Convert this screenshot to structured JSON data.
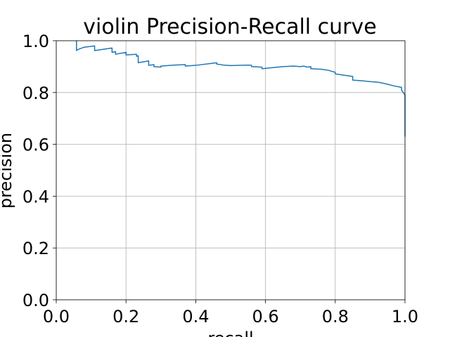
{
  "chart_data": {
    "type": "line",
    "title": "violin Precision-Recall curve",
    "xlabel": "recall",
    "ylabel": "precision",
    "xlim": [
      0.0,
      1.0
    ],
    "ylim": [
      0.0,
      1.0
    ],
    "xticks": [
      "0.0",
      "0.2",
      "0.4",
      "0.6",
      "0.8",
      "1.0"
    ],
    "yticks": [
      "0.0",
      "0.2",
      "0.4",
      "0.6",
      "0.8",
      "1.0"
    ],
    "grid": true,
    "series": [
      {
        "color": "#1f77b4",
        "x": [
          0.058,
          0.058,
          0.06,
          0.08,
          0.11,
          0.11,
          0.16,
          0.16,
          0.17,
          0.17,
          0.2,
          0.2,
          0.23,
          0.23,
          0.235,
          0.235,
          0.265,
          0.265,
          0.28,
          0.28,
          0.3,
          0.3,
          0.33,
          0.37,
          0.37,
          0.4,
          0.46,
          0.46,
          0.48,
          0.5,
          0.53,
          0.55,
          0.56,
          0.56,
          0.59,
          0.59,
          0.65,
          0.68,
          0.7,
          0.71,
          0.72,
          0.73,
          0.73,
          0.76,
          0.78,
          0.79,
          0.8,
          0.8,
          0.82,
          0.85,
          0.85,
          0.88,
          0.9,
          0.92,
          0.93,
          0.95,
          0.97,
          0.99,
          0.99,
          0.995,
          1.0,
          1.0
        ],
        "y": [
          1.0,
          0.962,
          0.965,
          0.975,
          0.98,
          0.962,
          0.972,
          0.955,
          0.958,
          0.948,
          0.955,
          0.945,
          0.948,
          0.94,
          0.942,
          0.915,
          0.922,
          0.905,
          0.908,
          0.9,
          0.898,
          0.902,
          0.905,
          0.908,
          0.902,
          0.905,
          0.915,
          0.91,
          0.906,
          0.904,
          0.905,
          0.906,
          0.905,
          0.9,
          0.898,
          0.892,
          0.9,
          0.902,
          0.9,
          0.902,
          0.898,
          0.9,
          0.892,
          0.89,
          0.886,
          0.882,
          0.878,
          0.872,
          0.868,
          0.862,
          0.848,
          0.845,
          0.842,
          0.84,
          0.838,
          0.832,
          0.825,
          0.82,
          0.81,
          0.8,
          0.79,
          0.63
        ]
      }
    ]
  }
}
